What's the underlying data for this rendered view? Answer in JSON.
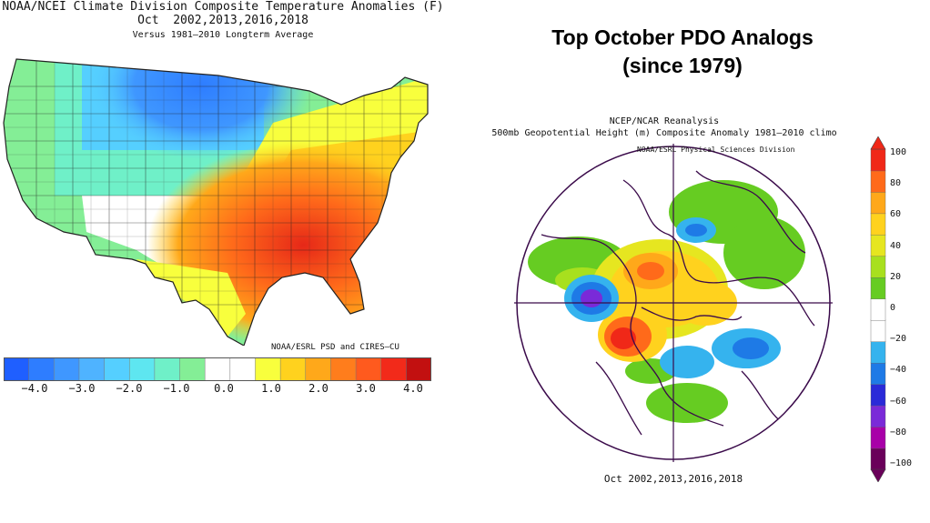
{
  "left_panel": {
    "title": "NOAA/NCEI Climate Division Composite Temperature Anomalies (F)",
    "subtitle": "Oct  2002,2013,2016,2018",
    "baseline": "Versus 1981–2010 Longterm Average",
    "credit": "NOAA/ESRL PSD and CIRES–CU",
    "colorbar": {
      "colors": [
        "#1f5fff",
        "#2e7dff",
        "#3f97ff",
        "#4fb3ff",
        "#55cfff",
        "#5ee6f0",
        "#6ff0c8",
        "#84ee96",
        "#ffffff",
        "#ffffff",
        "#f8ff3d",
        "#ffd21e",
        "#ffa81a",
        "#ff7d1c",
        "#ff5a1e",
        "#f22a1a",
        "#c21010"
      ],
      "ticks": [
        "−4.0",
        "−3.0",
        "−2.0",
        "−1.0",
        "0.0",
        "1.0",
        "2.0",
        "3.0",
        "4.0"
      ]
    }
  },
  "right_panel": {
    "headline": "Top October PDO Analogs (since 1979)",
    "reanalysis_title": "NCEP/NCAR Reanalysis",
    "reanalysis_subtitle": "500mb Geopotential Height (m) Composite Anomaly 1981–2010 climo",
    "credit": "NOAA/ESRL Physical Sciences Division",
    "footer": "Oct 2002,2013,2016,2018",
    "colorbar": {
      "colors": [
        "#6a005a",
        "#a800a8",
        "#7a2ad8",
        "#2a2ad8",
        "#1e7ae6",
        "#35b3ee",
        "#ffffff",
        "#ffffff",
        "#66cc22",
        "#a8e01e",
        "#e6e620",
        "#ffd21e",
        "#ffa81a",
        "#ff6a1a",
        "#f02818"
      ],
      "ticks": [
        "100",
        "80",
        "60",
        "40",
        "20",
        "0",
        "−20",
        "−40",
        "−60",
        "−80",
        "−100"
      ]
    }
  }
}
